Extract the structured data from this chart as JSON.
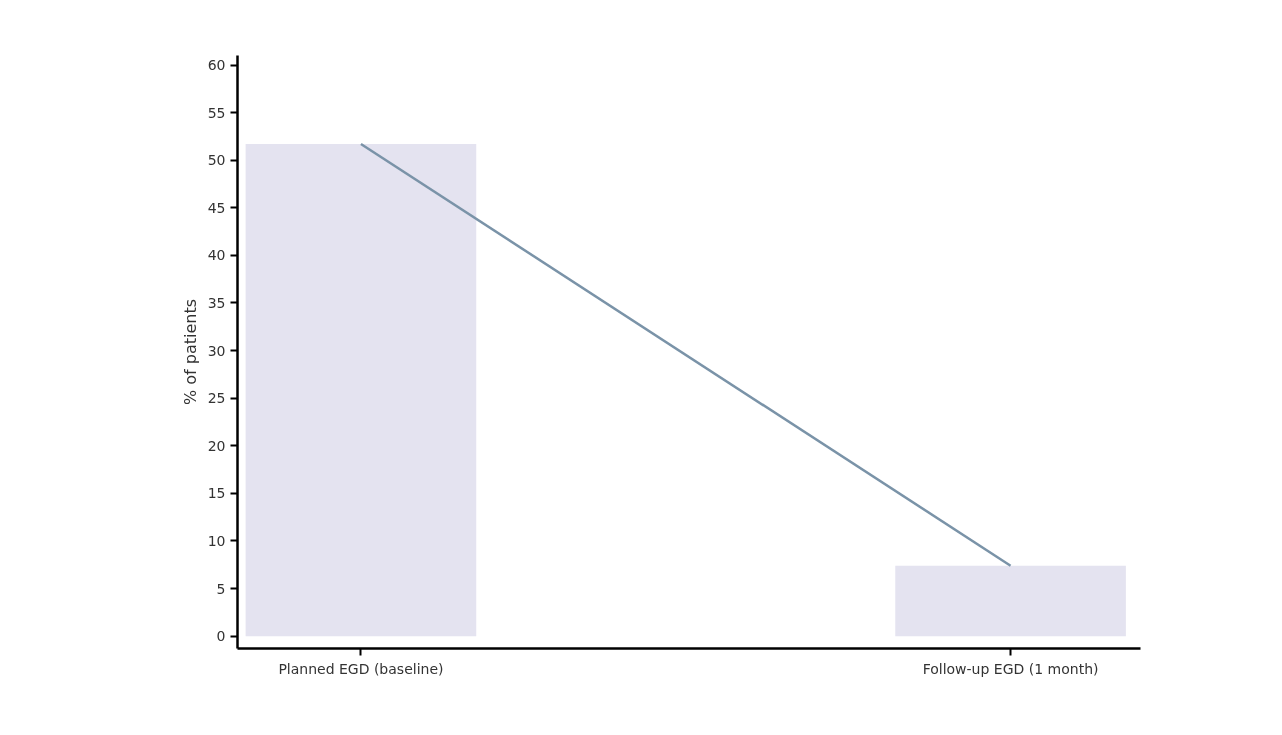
{
  "chart_data": {
    "type": "bar",
    "ylabel": "% of patients",
    "categories": [
      "Planned EGD (baseline)",
      "Follow-up EGD (1 month)"
    ],
    "series": [
      {
        "color": "#e4e3f0",
        "values": [
          51.7,
          7.4
        ]
      },
      {
        "type": "line",
        "color": "#7a93a8",
        "values": [
          51.7,
          7.4
        ]
      }
    ],
    "ylim": [
      -1.3,
      61
    ],
    "yticks": [
      0,
      5,
      10,
      15,
      20,
      25,
      30,
      35,
      40,
      45,
      50,
      55,
      60
    ],
    "grid": false,
    "marker": "none",
    "line_style": "solid"
  }
}
